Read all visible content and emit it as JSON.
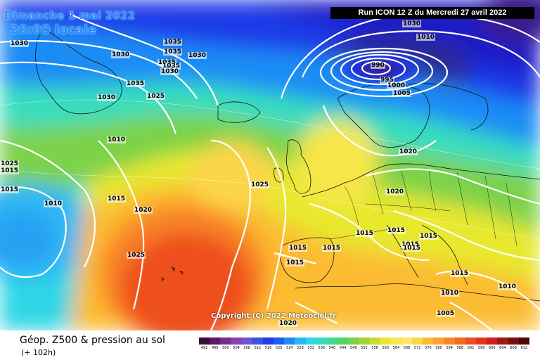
{
  "header": {
    "date": "Dimanche 1 mai 2022",
    "time": "20:00 locale",
    "run": "Run ICON 12 Z du Mercredi 27 avril 2022"
  },
  "copyright": "Copyright (C) 2022 Meteociel.fr",
  "footer": {
    "title": "Géop. Z500 & pression au sol",
    "subtitle": "(+ 102h)"
  },
  "isobar_labels": [
    "1030",
    "1035",
    "1035",
    "1030",
    "1030",
    "1035",
    "1035",
    "1030",
    "1035",
    "1030",
    "1025",
    "1030",
    "1025",
    "1010",
    "1015",
    "1010",
    "1015",
    "1020",
    "1025",
    "1025",
    "990",
    "995",
    "1000",
    "1005",
    "1010",
    "1015",
    "1020",
    "1020",
    "1015",
    "1015",
    "1015",
    "1015",
    "1015",
    "1015",
    "1015",
    "1015",
    "1010",
    "1010",
    "1005",
    "1015",
    "1020"
  ],
  "legend": {
    "values": [
      "492",
      "496",
      "500",
      "504",
      "508",
      "512",
      "516",
      "520",
      "524",
      "528",
      "532",
      "536",
      "540",
      "544",
      "548",
      "552",
      "556",
      "560",
      "564",
      "568",
      "572",
      "576",
      "580",
      "584",
      "588",
      "592",
      "596",
      "600",
      "604",
      "608",
      "612"
    ],
    "colors": [
      "#3a0c3a",
      "#5b1a67",
      "#7a2a8c",
      "#8c3fb0",
      "#6b56d8",
      "#3d51e3",
      "#1d3be8",
      "#1b5ff2",
      "#1e8cf5",
      "#27b7f3",
      "#2fd7e6",
      "#38ddbe",
      "#40d98f",
      "#52d567",
      "#7bd249",
      "#a3d435",
      "#c8dd2e",
      "#e8e82f",
      "#f7e64a",
      "#fde66b",
      "#fcd649",
      "#fcbc32",
      "#fba12c",
      "#f88425",
      "#f4691f",
      "#ee4f1e",
      "#e6321d",
      "#cc1f1f",
      "#a31515",
      "#7a0e0e",
      "#4b0606"
    ]
  }
}
